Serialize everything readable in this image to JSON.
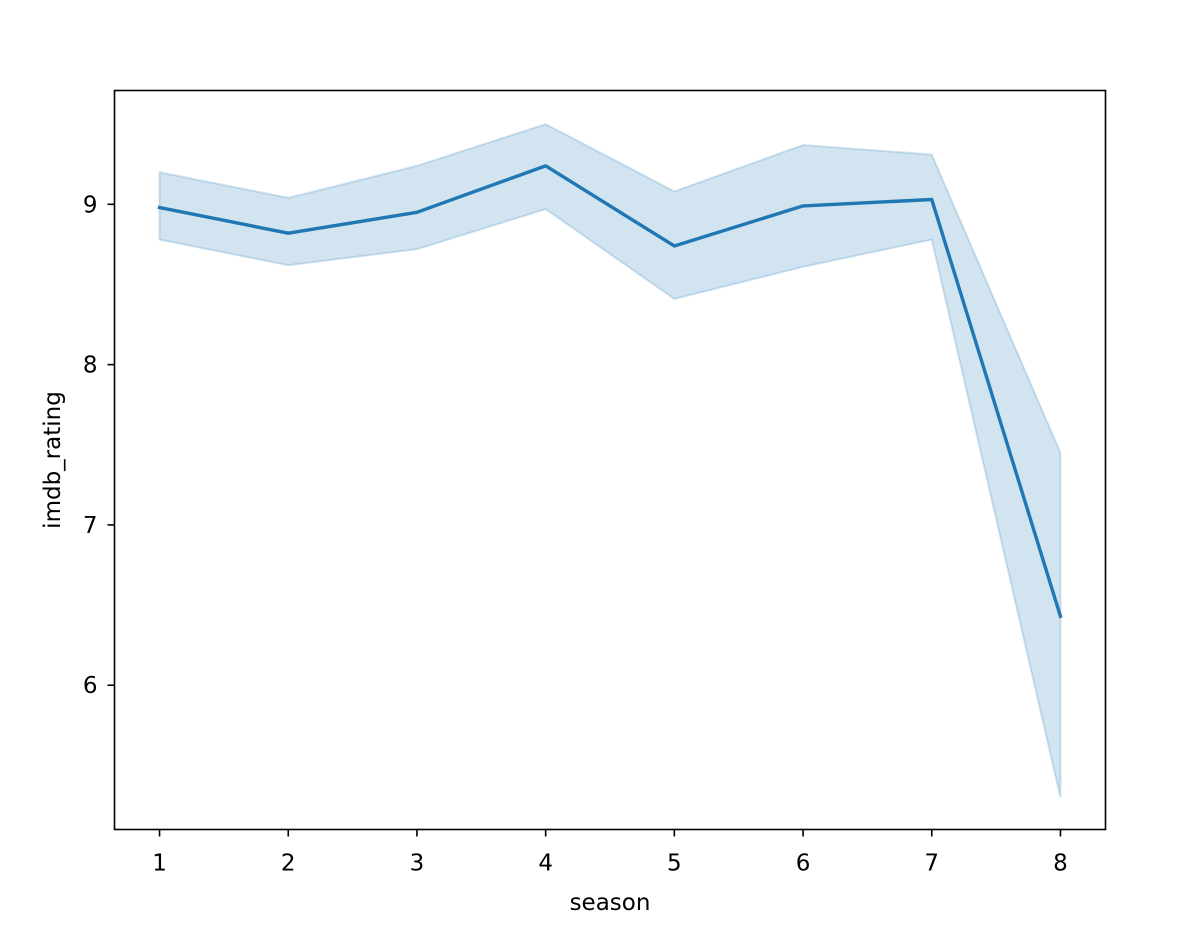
{
  "chart_data": {
    "type": "line",
    "x": [
      1,
      2,
      3,
      4,
      5,
      6,
      7,
      8
    ],
    "series": [
      {
        "values": [
          8.98,
          8.82,
          8.95,
          9.24,
          8.74,
          8.99,
          9.03,
          6.43
        ],
        "ci_lower": [
          8.78,
          8.62,
          8.72,
          8.97,
          8.41,
          8.61,
          8.78,
          5.3
        ],
        "ci_upper": [
          9.2,
          9.04,
          9.24,
          9.5,
          9.08,
          9.37,
          9.31,
          7.45
        ]
      }
    ],
    "xlabel": "season",
    "ylabel": "imdb_rating",
    "xticks": [
      "1",
      "2",
      "3",
      "4",
      "5",
      "6",
      "7",
      "8"
    ],
    "yticks": [
      "6",
      "7",
      "8",
      "9"
    ],
    "xlim": [
      0.65,
      8.35
    ],
    "ylim": [
      5.1,
      9.71
    ],
    "grid": false,
    "legend": "none",
    "colors": {
      "line": "#1f77b4",
      "band": "#1f77b4"
    }
  }
}
